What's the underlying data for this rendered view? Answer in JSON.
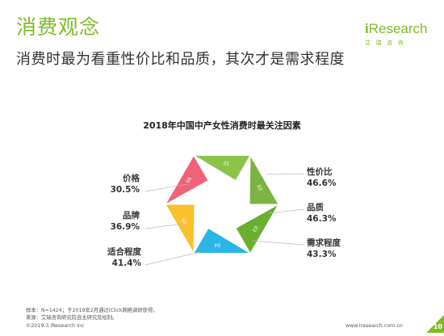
{
  "header": {
    "title": "消费观念",
    "subtitle": "消费时最为看重性价比和品质，其次才是需求程度"
  },
  "logo": {
    "brand": "Research",
    "brand_prefix": "i",
    "tagline": "艾瑞咨询"
  },
  "chart_data": {
    "type": "hexagon-ring",
    "title": "2018年中国中产女性消费时最关注因素",
    "segments": [
      {
        "id": "01",
        "name": "性价比",
        "value": "46.6%",
        "color": "#8bc34a"
      },
      {
        "id": "02",
        "name": "品质",
        "value": "46.3%",
        "color": "#7cb342"
      },
      {
        "id": "03",
        "name": "需求程度",
        "value": "43.3%",
        "color": "#6aaf2e"
      },
      {
        "id": "04",
        "name": "适合程度",
        "value": "41.4%",
        "color": "#29b6e6"
      },
      {
        "id": "05",
        "name": "品牌",
        "value": "36.9%",
        "color": "#fbc02d"
      },
      {
        "id": "06",
        "name": "价格",
        "value": "30.5%",
        "color": "#f06277"
      }
    ]
  },
  "footer": {
    "note1": "样本：N=1424；于2019年2月通过iClick网络调研获得。",
    "note2": "来源：艾瑞咨询研究院自主研究及绘制。",
    "copyright": "©2019.3 iResearch Inc",
    "site": "www.iresearch.com.cn",
    "page": "10"
  }
}
